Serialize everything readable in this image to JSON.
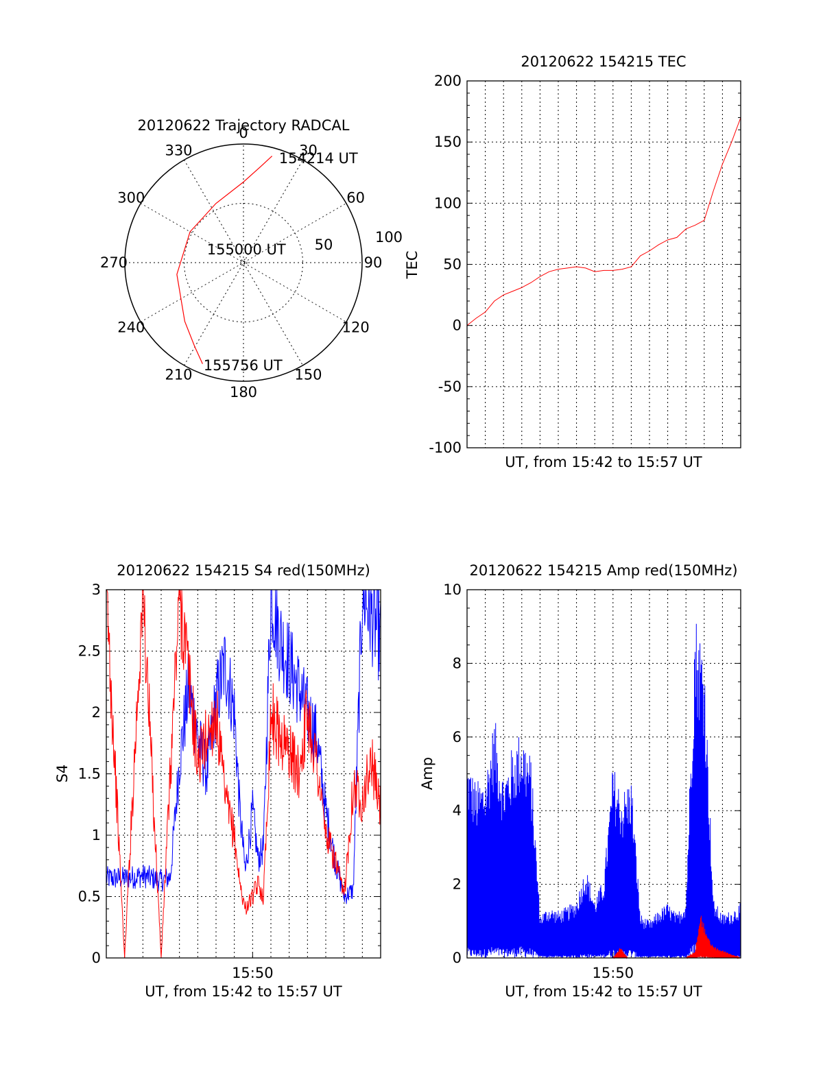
{
  "chart_data": [
    {
      "type": "polar",
      "title": "20120622 Trajectory RADCAL",
      "azimuth_labels": [
        "0",
        "30",
        "60",
        "90",
        "120",
        "150",
        "180",
        "210",
        "240",
        "270",
        "300",
        "330"
      ],
      "radial_labels": [
        "50",
        "100"
      ],
      "rlim": [
        0,
        100
      ],
      "grid": true,
      "series": [
        {
          "color": "#ff0000",
          "points": [
            [
              15,
              93
            ],
            [
              10,
              82
            ],
            [
              0,
              68
            ],
            [
              -25,
              55
            ],
            [
              -60,
              52
            ],
            [
              -100,
              57
            ],
            [
              -135,
              70
            ],
            [
              -150,
              82
            ],
            [
              -158,
              92
            ]
          ]
        }
      ],
      "annotations": [
        {
          "text": "154214 UT",
          "az": 18,
          "r": 93
        },
        {
          "text": "155000 UT",
          "az": -70,
          "r": 34
        },
        {
          "text": "155756 UT",
          "az": -158,
          "r": 93
        }
      ]
    },
    {
      "type": "line",
      "title": "20120622 154215 TEC",
      "xlabel": "UT, from 15:42 to 15:57 UT",
      "ylabel": "TEC",
      "xlim": [
        0,
        15
      ],
      "ylim": [
        -100,
        200
      ],
      "yticks": [
        -100,
        -50,
        0,
        50,
        100,
        150,
        200
      ],
      "grid": true,
      "series": [
        {
          "color": "#ff0000",
          "x": [
            0,
            0.5,
            1,
            1.5,
            2,
            2.5,
            3,
            3.5,
            4,
            4.5,
            5,
            5.5,
            6,
            6.5,
            7,
            7.5,
            8,
            8.5,
            9,
            9.5,
            10,
            10.5,
            11,
            11.5,
            12,
            12.5,
            13,
            13.5,
            14,
            14.5,
            15
          ],
          "y": [
            0,
            6,
            11,
            20,
            25,
            28,
            31,
            35,
            40,
            44,
            46,
            47,
            48,
            47,
            44,
            45,
            45,
            46,
            48,
            57,
            61,
            66,
            70,
            72,
            79,
            82,
            86,
            110,
            132,
            150,
            170
          ]
        }
      ]
    },
    {
      "type": "line",
      "title": "20120622 154215 S4 red(150MHz)",
      "xlabel": "UT, from 15:42 to 15:57 UT",
      "ylabel": "S4",
      "xlim": [
        0,
        15
      ],
      "ylim": [
        0,
        3
      ],
      "yticks": [
        0,
        0.5,
        1,
        1.5,
        2,
        2.5,
        3
      ],
      "xticks": [
        {
          "value": 8,
          "label": "15:50"
        }
      ],
      "grid": true,
      "series": [
        {
          "color": "#0000ff",
          "x": [
            0,
            1,
            2,
            3,
            3.5,
            4,
            4.5,
            5,
            5.5,
            6,
            6.5,
            7,
            7.3,
            7.6,
            8,
            8.3,
            8.6,
            9,
            9.5,
            10,
            10.5,
            11,
            11.5,
            12,
            12.5,
            13,
            13.5,
            14,
            14.5,
            15
          ],
          "y": [
            0.65,
            0.65,
            0.67,
            0.63,
            0.66,
            1.6,
            2.2,
            1.8,
            1.5,
            2.1,
            2.4,
            2.0,
            1.2,
            0.7,
            1.2,
            0.8,
            0.9,
            3,
            2.6,
            2.4,
            2.2,
            2.0,
            1.8,
            1.2,
            0.8,
            0.5,
            0.55,
            3,
            2.8,
            2.6
          ]
        },
        {
          "color": "#ff0000",
          "x": [
            0,
            1,
            2,
            3,
            4,
            5,
            6,
            6.5,
            7,
            7.3,
            7.6,
            8,
            8.3,
            8.6,
            9,
            9.5,
            10,
            10.5,
            11,
            11.5,
            12,
            12.5,
            13,
            13.5,
            14,
            14.5,
            15
          ],
          "y": [
            3,
            0,
            3,
            0,
            3,
            1.6,
            2.0,
            1.3,
            1.0,
            0.6,
            0.4,
            0.5,
            0.6,
            0.5,
            2.0,
            1.8,
            1.7,
            1.5,
            2.0,
            1.6,
            1.0,
            0.8,
            0.5,
            1.4,
            1.3,
            1.6,
            1.2
          ]
        }
      ]
    },
    {
      "type": "line",
      "title": "20120622 154215 Amp red(150MHz)",
      "xlabel": "UT, from 15:42 to 15:57 UT",
      "ylabel": "Amp",
      "xlim": [
        0,
        15
      ],
      "ylim": [
        0,
        10
      ],
      "yticks": [
        0,
        2,
        4,
        6,
        8,
        10
      ],
      "xticks": [
        {
          "value": 8,
          "label": "15:50"
        }
      ],
      "grid": true,
      "series": [
        {
          "color": "#0000ff",
          "name_hidden": true,
          "x": [
            0,
            0.5,
            1,
            1.5,
            2,
            2.5,
            3,
            3.5,
            4,
            4.5,
            5,
            5.5,
            6,
            6.5,
            7,
            7.5,
            8,
            8.5,
            9,
            9.5,
            10,
            10.5,
            11,
            11.5,
            12,
            12.5,
            13,
            13.5,
            14,
            14.5,
            15
          ],
          "y": [
            5.5,
            4.8,
            5.0,
            6.6,
            5.0,
            5.8,
            6.3,
            5.5,
            1.2,
            1.4,
            1.3,
            1.4,
            1.6,
            2.5,
            1.6,
            2.2,
            5.3,
            4.5,
            5.0,
            1.2,
            1.0,
            1.3,
            1.5,
            1.2,
            1.6,
            9.5,
            8.5,
            1.6,
            1.2,
            1.3,
            1.5
          ]
        },
        {
          "color": "#ff0000",
          "x": [
            0,
            7,
            8,
            8.4,
            8.8,
            12,
            12.5,
            12.8,
            13.2,
            13.6,
            15
          ],
          "y": [
            0,
            0,
            0,
            0.3,
            0,
            0,
            0.2,
            1.2,
            0.6,
            0.3,
            0
          ]
        }
      ]
    }
  ]
}
